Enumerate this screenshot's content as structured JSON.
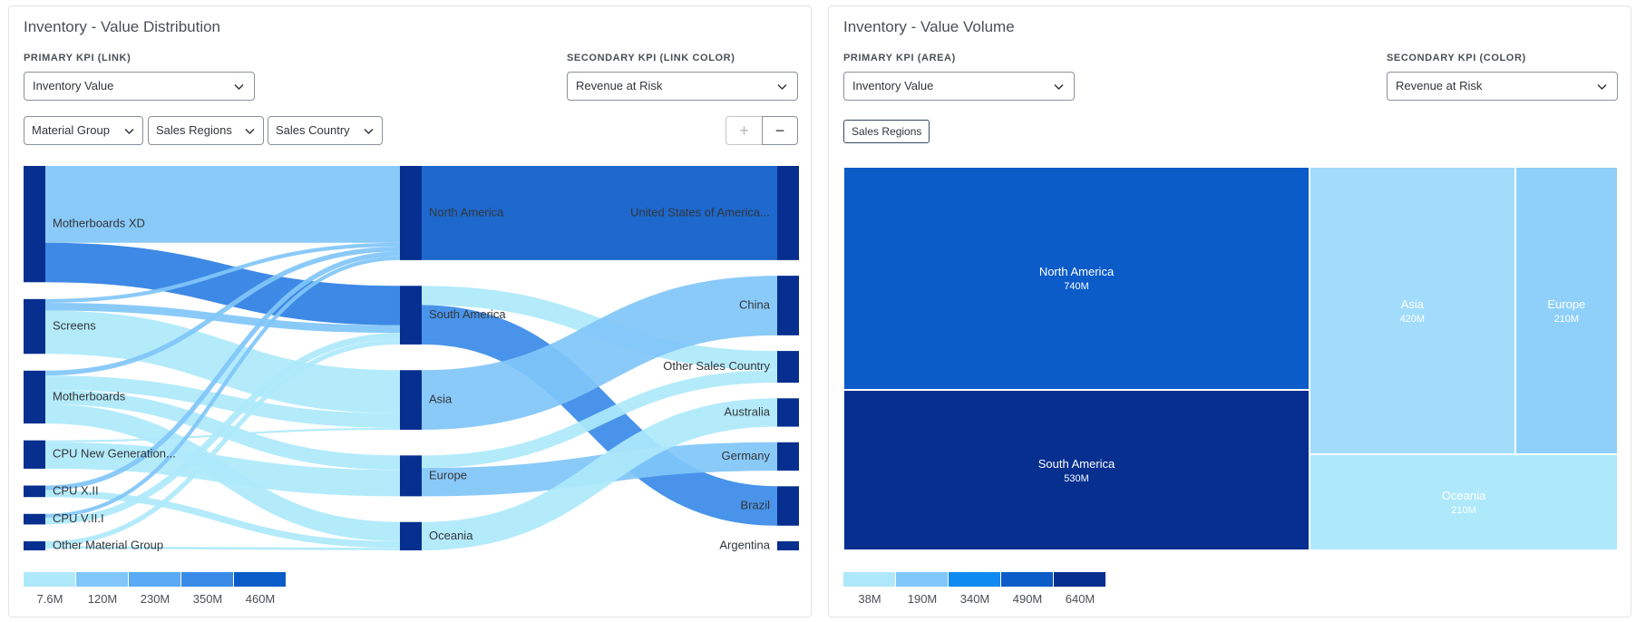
{
  "left_panel": {
    "title": "Inventory - Value Distribution",
    "primary_kpi_label": "PRIMARY KPI (LINK)",
    "primary_kpi_value": "Inventory Value",
    "secondary_kpi_label": "SECONDARY KPI (LINK COLOR)",
    "secondary_kpi_value": "Revenue at Risk",
    "dimensions": [
      "Material Group",
      "Sales Regions",
      "Sales Country"
    ],
    "zoom_in_label": "+",
    "zoom_out_label": "−",
    "legend": {
      "labels": [
        "7.6M",
        "120M",
        "230M",
        "350M",
        "460M"
      ],
      "colors": [
        "#aee9fb",
        "#80c6f9",
        "#5aaaf5",
        "#3a8be8",
        "#0b5bc9"
      ]
    }
  },
  "right_panel": {
    "title": "Inventory - Value Volume",
    "primary_kpi_label": "PRIMARY KPI (AREA)",
    "primary_kpi_value": "Inventory Value",
    "secondary_kpi_label": "SECONDARY KPI (COLOR)",
    "secondary_kpi_value": "Revenue at Risk",
    "dimension_chip": "Sales Regions",
    "legend": {
      "labels": [
        "38M",
        "190M",
        "340M",
        "490M",
        "640M"
      ],
      "colors": [
        "#aee9fb",
        "#80c6f9",
        "#0e8af0",
        "#0b5bc9",
        "#062f8f"
      ]
    }
  },
  "chart_data": [
    {
      "type": "sankey",
      "columns": [
        [
          "Motherboards XD",
          "Screens",
          "Motherboards",
          "CPU New Generation...",
          "CPU X.II",
          "CPU V.II.I",
          "Other Material Group"
        ],
        [
          "North America",
          "South America",
          "Asia",
          "Europe",
          "Oceania"
        ],
        [
          "United States of America...",
          "China",
          "Other Sales Country",
          "Australia",
          "Germany",
          "Brazil",
          "Argentina"
        ]
      ],
      "links": [
        {
          "source": "Motherboards XD",
          "target": "North America",
          "value": 160,
          "color": "#80c6f9"
        },
        {
          "source": "Motherboards XD",
          "target": "South America",
          "value": 82,
          "color": "#2e7fe3"
        },
        {
          "source": "Screens",
          "target": "North America",
          "value": 8,
          "color": "#80c6f9"
        },
        {
          "source": "Screens",
          "target": "South America",
          "value": 16,
          "color": "#80c6f9"
        },
        {
          "source": "Screens",
          "target": "Asia",
          "value": 90,
          "color": "#aee9fb"
        },
        {
          "source": "Motherboards",
          "target": "North America",
          "value": 10,
          "color": "#80c6f9"
        },
        {
          "source": "Motherboards",
          "target": "Asia",
          "value": 30,
          "color": "#aee9fb"
        },
        {
          "source": "Motherboards",
          "target": "Europe",
          "value": 30,
          "color": "#aee9fb"
        },
        {
          "source": "Motherboards",
          "target": "Oceania",
          "value": 40,
          "color": "#aee9fb"
        },
        {
          "source": "CPU New Generation...",
          "target": "Asia",
          "value": 4,
          "color": "#aee9fb"
        },
        {
          "source": "CPU New Generation...",
          "target": "Europe",
          "value": 55,
          "color": "#aee9fb"
        },
        {
          "source": "CPU X.II",
          "target": "North America",
          "value": 10,
          "color": "#80c6f9"
        },
        {
          "source": "CPU X.II",
          "target": "Oceania",
          "value": 14,
          "color": "#aee9fb"
        },
        {
          "source": "CPU V.II.I",
          "target": "North America",
          "value": 8,
          "color": "#80c6f9"
        },
        {
          "source": "CPU V.II.I",
          "target": "South America",
          "value": 14,
          "color": "#aee9fb"
        },
        {
          "source": "Other Material Group",
          "target": "South America",
          "value": 10,
          "color": "#aee9fb"
        },
        {
          "source": "Other Material Group",
          "target": "Oceania",
          "value": 5,
          "color": "#aee9fb"
        },
        {
          "source": "North America",
          "target": "United States of America...",
          "value": 196,
          "color": "#0b5bc9"
        },
        {
          "source": "South America",
          "target": "Other Sales Country",
          "value": 40,
          "color": "#aee9fb"
        },
        {
          "source": "South America",
          "target": "Brazil",
          "value": 82,
          "color": "#3a8be8"
        },
        {
          "source": "Asia",
          "target": "China",
          "value": 124,
          "color": "#80c6f9"
        },
        {
          "source": "Europe",
          "target": "Germany",
          "value": 59,
          "color": "#80c6f9"
        },
        {
          "source": "Europe",
          "target": "Other Sales Country",
          "value": 26,
          "color": "#aee9fb"
        },
        {
          "source": "Oceania",
          "target": "Australia",
          "value": 59,
          "color": "#aee9fb"
        },
        {
          "source": "North America",
          "target": "Argentina",
          "value": 0,
          "color": "#80c6f9"
        },
        {
          "source": "Oceania",
          "target": "Argentina",
          "value": 0,
          "color": "#80c6f9"
        }
      ]
    },
    {
      "type": "treemap",
      "items": [
        {
          "name": "North America",
          "label": "740M",
          "value": 740,
          "color": "#0b5bc9"
        },
        {
          "name": "South America",
          "label": "530M",
          "value": 530,
          "color": "#062f8f"
        },
        {
          "name": "Asia",
          "label": "420M",
          "value": 420,
          "color": "#a2dcfb"
        },
        {
          "name": "Europe",
          "label": "210M",
          "value": 210,
          "color": "#8fd0fa"
        },
        {
          "name": "Oceania",
          "label": "210M",
          "value": 210,
          "color": "#aee9fb"
        }
      ]
    }
  ]
}
